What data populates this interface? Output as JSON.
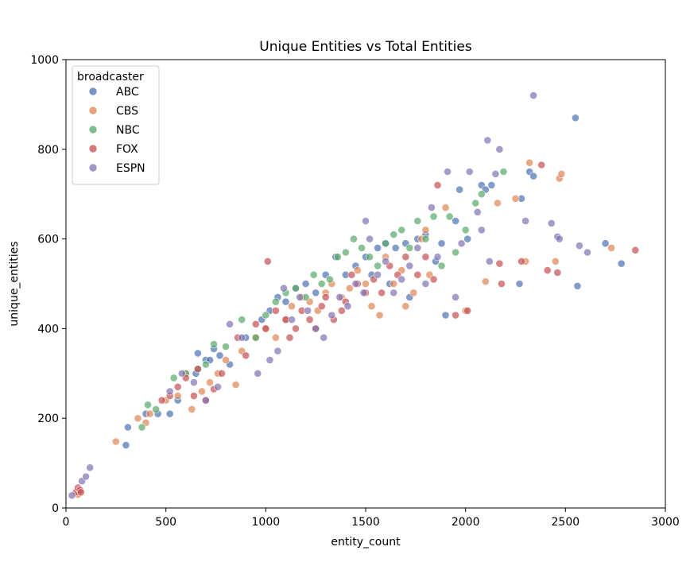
{
  "chart_data": {
    "type": "scatter",
    "title": "Unique Entities vs Total Entities",
    "xlabel": "entity_count",
    "ylabel": "unique_entities",
    "xlim": [
      0,
      3000
    ],
    "ylim": [
      0,
      1000
    ],
    "xticks": [
      0,
      500,
      1000,
      1500,
      2000,
      2500,
      3000
    ],
    "yticks": [
      0,
      200,
      400,
      600,
      800,
      1000
    ],
    "grid": false,
    "legend": {
      "title": "broadcaster",
      "placement": "top-left"
    },
    "series": [
      {
        "name": "ABC",
        "color": "#4c72b0",
        "points": [
          [
            300,
            140
          ],
          [
            310,
            180
          ],
          [
            400,
            210
          ],
          [
            460,
            210
          ],
          [
            520,
            210
          ],
          [
            560,
            240
          ],
          [
            650,
            300
          ],
          [
            660,
            345
          ],
          [
            700,
            330
          ],
          [
            720,
            330
          ],
          [
            740,
            355
          ],
          [
            770,
            340
          ],
          [
            820,
            320
          ],
          [
            900,
            380
          ],
          [
            980,
            420
          ],
          [
            1020,
            440
          ],
          [
            1060,
            470
          ],
          [
            1100,
            460
          ],
          [
            1150,
            490
          ],
          [
            1200,
            500
          ],
          [
            1250,
            480
          ],
          [
            1300,
            520
          ],
          [
            1350,
            560
          ],
          [
            1400,
            520
          ],
          [
            1450,
            540
          ],
          [
            1500,
            560
          ],
          [
            1530,
            520
          ],
          [
            1560,
            580
          ],
          [
            1600,
            590
          ],
          [
            1620,
            500
          ],
          [
            1650,
            580
          ],
          [
            1700,
            590
          ],
          [
            1720,
            470
          ],
          [
            1760,
            600
          ],
          [
            1800,
            610
          ],
          [
            1850,
            550
          ],
          [
            1880,
            590
          ],
          [
            1900,
            430
          ],
          [
            1950,
            640
          ],
          [
            1970,
            710
          ],
          [
            2010,
            600
          ],
          [
            2080,
            720
          ],
          [
            2100,
            710
          ],
          [
            2130,
            720
          ],
          [
            2270,
            500
          ],
          [
            2280,
            690
          ],
          [
            2320,
            750
          ],
          [
            2340,
            740
          ],
          [
            2550,
            870
          ],
          [
            2560,
            495
          ],
          [
            2700,
            590
          ],
          [
            2780,
            545
          ]
        ]
      },
      {
        "name": "CBS",
        "color": "#dd8452",
        "points": [
          [
            60,
            30
          ],
          [
            250,
            148
          ],
          [
            360,
            200
          ],
          [
            400,
            190
          ],
          [
            420,
            210
          ],
          [
            500,
            240
          ],
          [
            560,
            250
          ],
          [
            600,
            300
          ],
          [
            630,
            220
          ],
          [
            680,
            260
          ],
          [
            720,
            280
          ],
          [
            760,
            300
          ],
          [
            800,
            330
          ],
          [
            850,
            275
          ],
          [
            880,
            350
          ],
          [
            950,
            380
          ],
          [
            1000,
            400
          ],
          [
            1050,
            380
          ],
          [
            1100,
            420
          ],
          [
            1130,
            450
          ],
          [
            1180,
            470
          ],
          [
            1220,
            460
          ],
          [
            1260,
            440
          ],
          [
            1300,
            480
          ],
          [
            1330,
            500
          ],
          [
            1380,
            470
          ],
          [
            1420,
            490
          ],
          [
            1460,
            530
          ],
          [
            1500,
            500
          ],
          [
            1530,
            450
          ],
          [
            1570,
            430
          ],
          [
            1600,
            560
          ],
          [
            1640,
            500
          ],
          [
            1680,
            530
          ],
          [
            1700,
            450
          ],
          [
            1740,
            480
          ],
          [
            1780,
            600
          ],
          [
            1800,
            620
          ],
          [
            1820,
            520
          ],
          [
            1900,
            670
          ],
          [
            2000,
            440
          ],
          [
            2100,
            505
          ],
          [
            2160,
            680
          ],
          [
            2250,
            690
          ],
          [
            2300,
            550
          ],
          [
            2320,
            770
          ],
          [
            2450,
            550
          ],
          [
            2470,
            735
          ],
          [
            2480,
            745
          ],
          [
            2730,
            580
          ]
        ]
      },
      {
        "name": "NBC",
        "color": "#55a868",
        "points": [
          [
            380,
            180
          ],
          [
            410,
            230
          ],
          [
            450,
            220
          ],
          [
            540,
            290
          ],
          [
            600,
            300
          ],
          [
            660,
            310
          ],
          [
            700,
            320
          ],
          [
            740,
            365
          ],
          [
            800,
            360
          ],
          [
            880,
            420
          ],
          [
            950,
            380
          ],
          [
            1000,
            430
          ],
          [
            1050,
            460
          ],
          [
            1100,
            480
          ],
          [
            1150,
            490
          ],
          [
            1200,
            470
          ],
          [
            1240,
            520
          ],
          [
            1280,
            500
          ],
          [
            1320,
            510
          ],
          [
            1360,
            560
          ],
          [
            1400,
            570
          ],
          [
            1440,
            600
          ],
          [
            1480,
            580
          ],
          [
            1520,
            560
          ],
          [
            1560,
            540
          ],
          [
            1600,
            590
          ],
          [
            1640,
            610
          ],
          [
            1680,
            620
          ],
          [
            1720,
            580
          ],
          [
            1760,
            640
          ],
          [
            1800,
            600
          ],
          [
            1840,
            650
          ],
          [
            1880,
            540
          ],
          [
            1920,
            650
          ],
          [
            1950,
            570
          ],
          [
            2000,
            620
          ],
          [
            2050,
            680
          ],
          [
            2080,
            700
          ],
          [
            2190,
            750
          ]
        ]
      },
      {
        "name": "FOX",
        "color": "#c44e52",
        "points": [
          [
            50,
            35
          ],
          [
            60,
            45
          ],
          [
            70,
            40
          ],
          [
            75,
            35
          ],
          [
            480,
            240
          ],
          [
            520,
            250
          ],
          [
            560,
            270
          ],
          [
            600,
            290
          ],
          [
            640,
            250
          ],
          [
            660,
            310
          ],
          [
            700,
            240
          ],
          [
            740,
            265
          ],
          [
            780,
            300
          ],
          [
            860,
            380
          ],
          [
            900,
            340
          ],
          [
            950,
            410
          ],
          [
            1000,
            400
          ],
          [
            1010,
            550
          ],
          [
            1050,
            440
          ],
          [
            1100,
            420
          ],
          [
            1120,
            380
          ],
          [
            1150,
            400
          ],
          [
            1180,
            440
          ],
          [
            1220,
            420
          ],
          [
            1250,
            400
          ],
          [
            1280,
            450
          ],
          [
            1300,
            470
          ],
          [
            1340,
            420
          ],
          [
            1380,
            440
          ],
          [
            1400,
            460
          ],
          [
            1430,
            520
          ],
          [
            1460,
            500
          ],
          [
            1500,
            480
          ],
          [
            1540,
            510
          ],
          [
            1580,
            480
          ],
          [
            1620,
            540
          ],
          [
            1660,
            520
          ],
          [
            1700,
            560
          ],
          [
            1760,
            520
          ],
          [
            1800,
            560
          ],
          [
            1840,
            510
          ],
          [
            1860,
            720
          ],
          [
            1950,
            430
          ],
          [
            2010,
            440
          ],
          [
            2170,
            545
          ],
          [
            2180,
            500
          ],
          [
            2280,
            550
          ],
          [
            2380,
            765
          ],
          [
            2410,
            530
          ],
          [
            2460,
            525
          ],
          [
            2850,
            575
          ]
        ]
      },
      {
        "name": "ESPN",
        "color": "#8172b2",
        "points": [
          [
            30,
            28
          ],
          [
            80,
            60
          ],
          [
            100,
            70
          ],
          [
            120,
            90
          ],
          [
            520,
            260
          ],
          [
            580,
            300
          ],
          [
            640,
            280
          ],
          [
            700,
            240
          ],
          [
            760,
            270
          ],
          [
            820,
            410
          ],
          [
            880,
            380
          ],
          [
            960,
            300
          ],
          [
            1020,
            330
          ],
          [
            1060,
            350
          ],
          [
            1090,
            490
          ],
          [
            1130,
            420
          ],
          [
            1170,
            470
          ],
          [
            1210,
            440
          ],
          [
            1250,
            400
          ],
          [
            1290,
            380
          ],
          [
            1330,
            430
          ],
          [
            1370,
            470
          ],
          [
            1410,
            450
          ],
          [
            1450,
            500
          ],
          [
            1490,
            480
          ],
          [
            1500,
            640
          ],
          [
            1520,
            600
          ],
          [
            1560,
            520
          ],
          [
            1600,
            550
          ],
          [
            1640,
            480
          ],
          [
            1680,
            510
          ],
          [
            1720,
            540
          ],
          [
            1760,
            580
          ],
          [
            1800,
            500
          ],
          [
            1830,
            670
          ],
          [
            1860,
            560
          ],
          [
            1910,
            750
          ],
          [
            1950,
            470
          ],
          [
            1980,
            590
          ],
          [
            2020,
            750
          ],
          [
            2060,
            660
          ],
          [
            2080,
            620
          ],
          [
            2110,
            820
          ],
          [
            2120,
            550
          ],
          [
            2150,
            745
          ],
          [
            2170,
            800
          ],
          [
            2300,
            640
          ],
          [
            2340,
            920
          ],
          [
            2430,
            635
          ],
          [
            2460,
            605
          ],
          [
            2470,
            600
          ],
          [
            2570,
            585
          ],
          [
            2610,
            570
          ]
        ]
      }
    ]
  }
}
